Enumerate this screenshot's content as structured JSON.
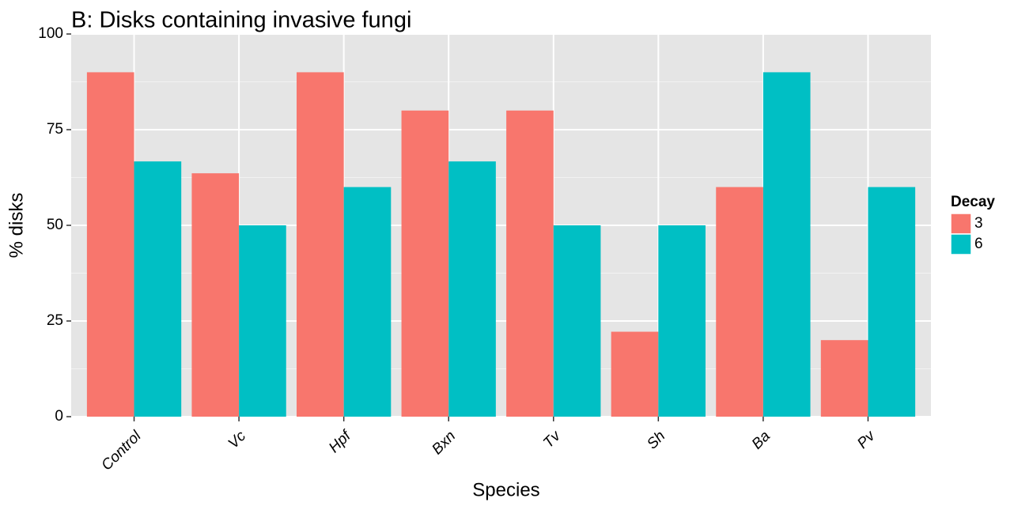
{
  "chart_data": {
    "type": "bar",
    "title": "B: Disks containing invasive fungi",
    "x_label": "Species",
    "y_label": "% disks",
    "legend_title": "Decay",
    "categories": [
      "Control",
      "Vc",
      "Hpf",
      "Bxn",
      "Tv",
      "Sh",
      "Ba",
      "Pv"
    ],
    "series": [
      {
        "name": "3",
        "color": "#f8766d",
        "values": [
          90,
          63.6,
          90,
          80,
          80,
          22.2,
          60,
          20
        ]
      },
      {
        "name": "6",
        "color": "#00bfc4",
        "values": [
          66.7,
          50,
          60,
          66.7,
          50,
          50,
          90,
          60
        ]
      }
    ],
    "ylim": [
      0,
      100
    ],
    "yticks": [
      0,
      25,
      50,
      75,
      100
    ],
    "grid": true,
    "legend": "right"
  }
}
